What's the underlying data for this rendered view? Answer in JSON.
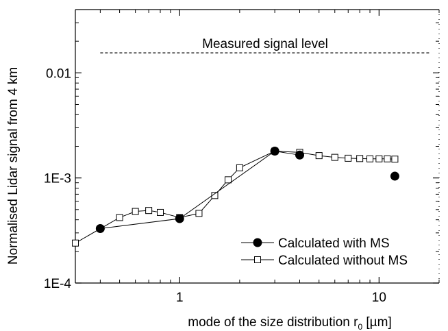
{
  "chart_data": {
    "type": "scatter",
    "x_scale": "log",
    "y_scale": "log",
    "xlim": [
      0.3,
      20
    ],
    "ylim": [
      0.0001,
      0.04
    ],
    "xlabel": "mode of the size distribution r",
    "xlabel_sub": "0",
    "xlabel_unit": " [µm]",
    "ylabel": "Normalised Lidar signal from 4 km",
    "x_ticks": [
      {
        "v": 1,
        "label": "1"
      },
      {
        "v": 10,
        "label": "10"
      }
    ],
    "y_ticks": [
      {
        "v": 0.0001,
        "label": "1E-4"
      },
      {
        "v": 0.001,
        "label": "1E-3"
      },
      {
        "v": 0.01,
        "label": "0.01"
      }
    ],
    "grid": false,
    "legend_position": "bottom-right",
    "reference_line": {
      "label": "Measured signal level",
      "y": 0.0155,
      "x_range": [
        0.4,
        18
      ]
    },
    "series": [
      {
        "name": "Calculated with MS",
        "marker": "filled-circle",
        "x": [
          0.4,
          1.0,
          3.0,
          4.0,
          12.0
        ],
        "y": [
          0.00033,
          0.00041,
          0.0018,
          0.00165,
          0.00104
        ]
      },
      {
        "name": "Calculated without MS",
        "marker": "open-square",
        "x": [
          0.3,
          0.5,
          0.6,
          0.7,
          0.8,
          1.0,
          1.25,
          1.5,
          1.75,
          2.0,
          3.0,
          4.0,
          5.0,
          6.0,
          7.0,
          8.0,
          9.0,
          10.0,
          11.0,
          12.0
        ],
        "y": [
          0.00024,
          0.00042,
          0.00048,
          0.00049,
          0.00047,
          0.00042,
          0.00046,
          0.00068,
          0.00096,
          0.00125,
          0.0018,
          0.00175,
          0.00163,
          0.00157,
          0.00154,
          0.00153,
          0.00152,
          0.00152,
          0.00152,
          0.00151
        ]
      }
    ]
  }
}
